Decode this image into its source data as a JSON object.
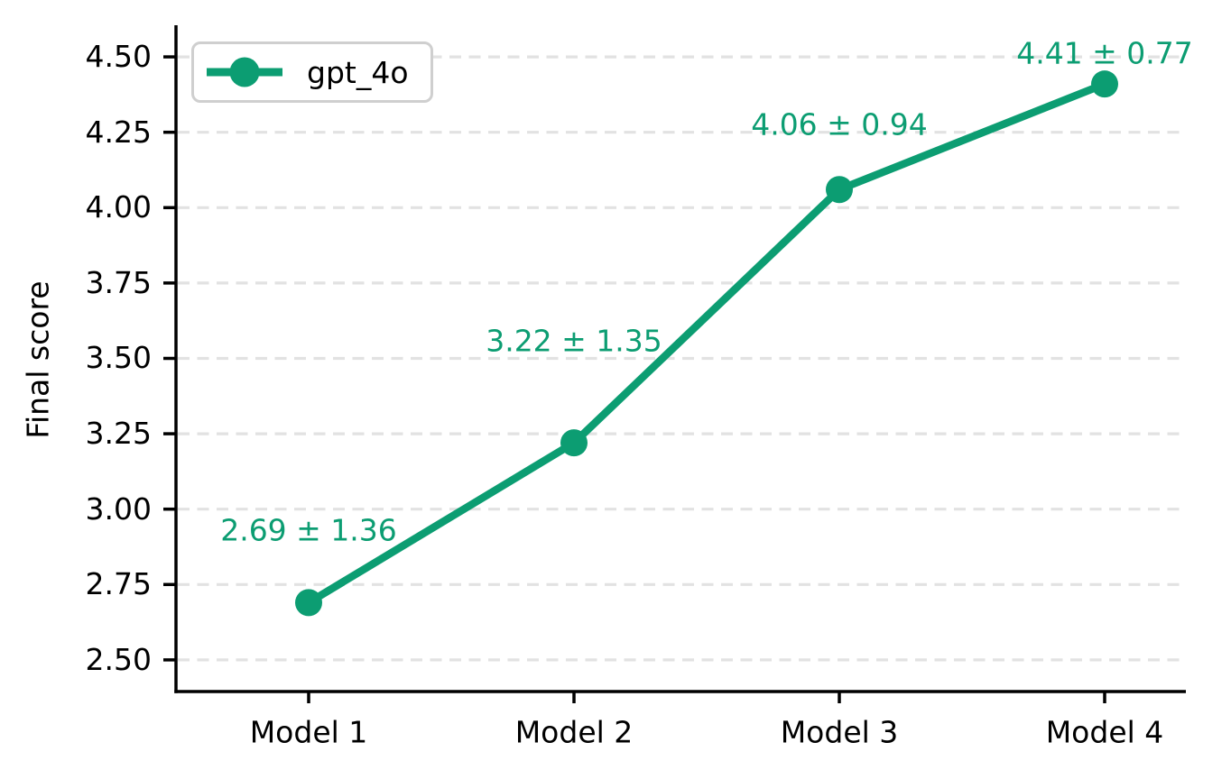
{
  "chart_data": {
    "type": "line",
    "title": "",
    "xlabel": "",
    "ylabel": "Final score",
    "categories": [
      "Model 1",
      "Model 2",
      "Model 3",
      "Model 4"
    ],
    "series": [
      {
        "name": "gpt_4o",
        "values": [
          2.69,
          3.22,
          4.06,
          4.41
        ],
        "errors": [
          1.36,
          1.35,
          0.94,
          0.77
        ],
        "color": "#0c9d72"
      }
    ],
    "point_labels": [
      "2.69 ± 1.36",
      "3.22 ± 1.35",
      "4.06 ± 0.94",
      "4.41 ± 0.77"
    ],
    "yticks": [
      4.5,
      4.25,
      4.0,
      3.75,
      3.5,
      3.25,
      3.0,
      2.75,
      2.5
    ],
    "ytick_labels": [
      "4.50",
      "4.25",
      "4.00",
      "3.75",
      "3.50",
      "3.25",
      "3.00",
      "2.75",
      "2.50"
    ],
    "ylim": [
      2.395,
      4.605
    ],
    "grid": "horizontal-dashed",
    "legend_position": "upper-left",
    "colors": {
      "line": "#0c9d72",
      "grid": "#e2e2e2",
      "axis": "#000000",
      "text": "#000000",
      "legend_border": "#cfcfcf",
      "background": "#ffffff"
    }
  }
}
